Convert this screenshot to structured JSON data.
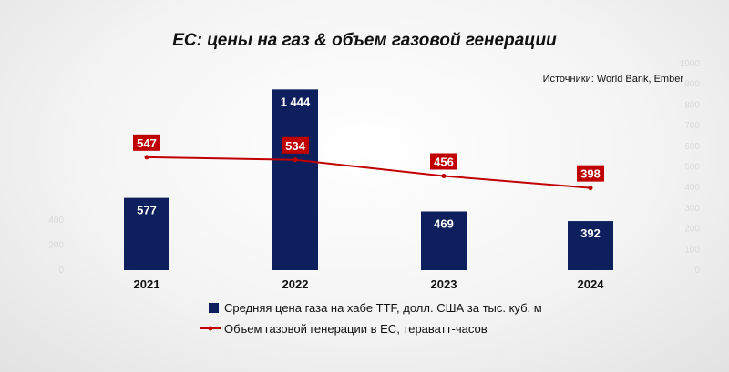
{
  "chart_data": {
    "type": "bar",
    "title": "ЕС: цены на газ & объем газовой генерации",
    "source": "Источники: World Bank, Ember",
    "categories": [
      "2021",
      "2022",
      "2023",
      "2024"
    ],
    "series": [
      {
        "name": "Средняя цена газа на хабе TTF, долл. США за тыс. куб. м",
        "type": "bar",
        "axis": "left",
        "values": [
          577,
          1444,
          469,
          392
        ],
        "labels": [
          "577",
          "1 444",
          "469",
          "392"
        ],
        "color": "#0d1f5c"
      },
      {
        "name": "Объем газовой генерации в ЕС, тераватт-часов",
        "type": "line",
        "axis": "right",
        "values": [
          547,
          534,
          456,
          398
        ],
        "labels": [
          "547",
          "534",
          "456",
          "398"
        ],
        "color": "#c00000"
      }
    ],
    "left_axis": {
      "ylim": [
        0,
        1650
      ],
      "ticks": [
        "0",
        "200",
        "400"
      ]
    },
    "right_axis": {
      "ylim": [
        0,
        1000
      ],
      "ticks": [
        "0",
        "100",
        "200",
        "300",
        "400",
        "500",
        "600",
        "700",
        "800",
        "900",
        "1000"
      ]
    },
    "grid": false,
    "legend_position": "bottom"
  }
}
